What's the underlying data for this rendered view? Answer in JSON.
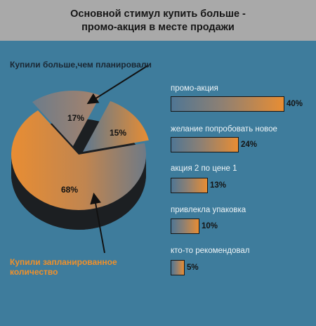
{
  "header": {
    "title_line1": "Основной стимул купить больше -",
    "title_line2": "промо-акция в месте продажи"
  },
  "chart_data": [
    {
      "type": "pie",
      "slices": [
        {
          "label": "Купили запланированное количество",
          "value": 68,
          "value_label": "68%",
          "color": "#e88d33"
        },
        {
          "label": "Купили больше,чем планировали",
          "value": 17,
          "value_label": "17%",
          "color": "#7b7f84"
        },
        {
          "label": "",
          "value": 15,
          "value_label": "15%",
          "color": "#8c7f75"
        }
      ],
      "annotations": [
        "Купили больше,чем планировали",
        "Купили запланированное количество"
      ]
    },
    {
      "type": "bar",
      "orientation": "horizontal",
      "categories": [
        "промо-акция",
        "желание попробовать новое",
        "акция 2 по цене 1",
        "привлекла упаковка",
        "кто-то рекомендовал"
      ],
      "values": [
        40,
        24,
        13,
        10,
        5
      ],
      "value_labels": [
        "40%",
        "24%",
        "13%",
        "10%",
        "5%"
      ],
      "xlim": [
        0,
        40
      ]
    }
  ],
  "callouts": {
    "more_than_planned": "Купили больше,чем планировали",
    "planned_l1": "Купили запланированное",
    "planned_l2": "количество"
  },
  "colors": {
    "background": "#3e7c9c",
    "header": "#a9a9a9",
    "accent": "#e88d33",
    "annotation": "#f0902a"
  }
}
